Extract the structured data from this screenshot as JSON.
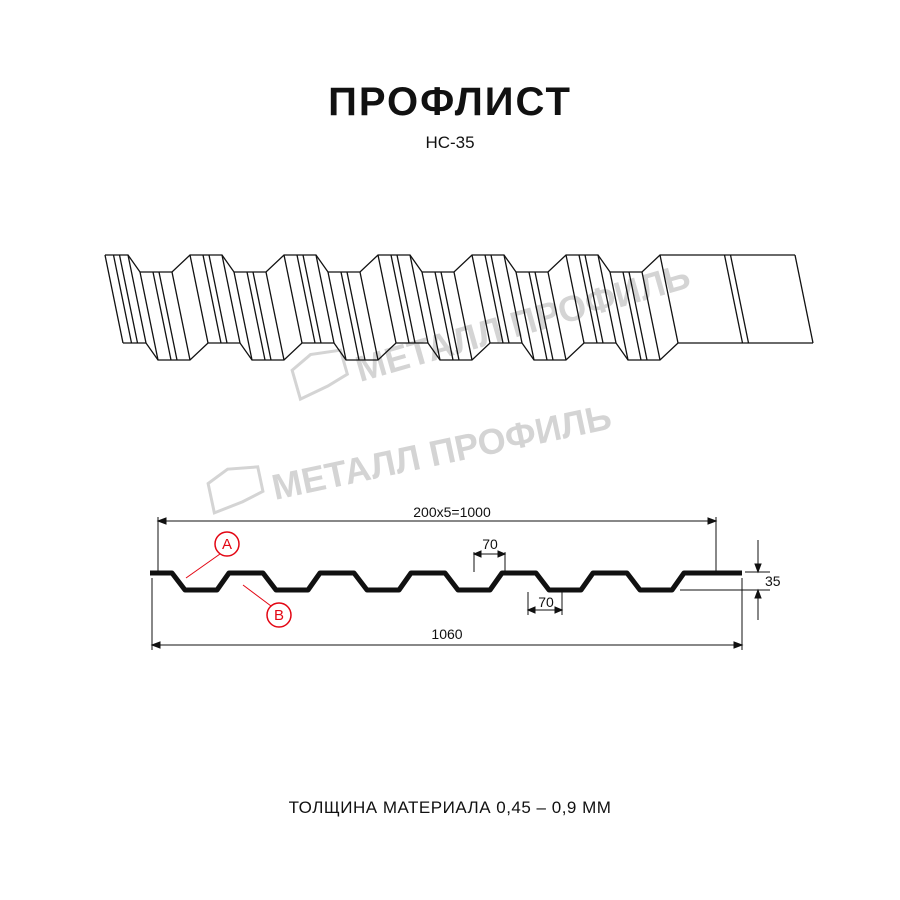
{
  "header": {
    "title": "ПРОФЛИСТ",
    "model": "НС-35"
  },
  "watermark": {
    "text": "МЕТАЛЛ ПРОФИЛЬ"
  },
  "drawing": {
    "dimensions": {
      "cover_width": "200x5=1000",
      "top_width": "70",
      "bottom_width": "70",
      "height": "35",
      "full_width": "1060"
    },
    "callouts": {
      "a": "A",
      "b": "B"
    },
    "accent_color": "#e30613"
  },
  "footer": {
    "thickness": "ТОЛЩИНА МАТЕРИАЛА 0,45 – 0,9 ММ"
  }
}
